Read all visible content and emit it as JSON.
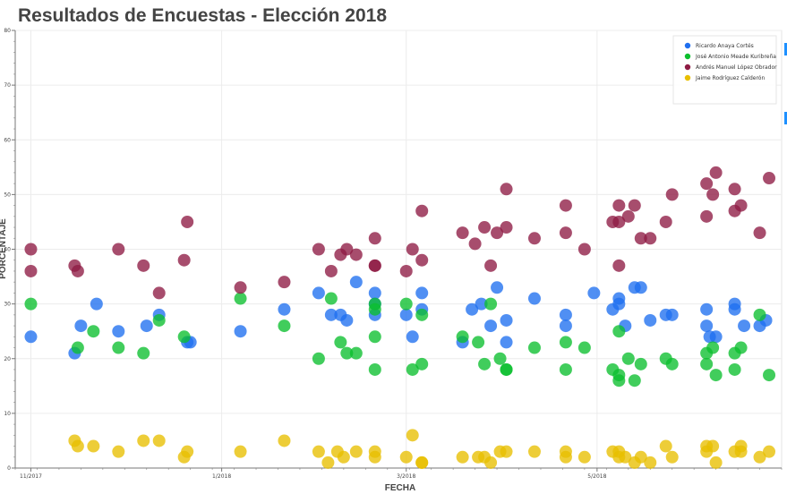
{
  "chart_data": {
    "type": "scatter",
    "title": "Resultados de Encuestas - Elección 2018",
    "xlabel": "FECHA",
    "ylabel": "PORCENTAJE",
    "ylim": [
      0,
      80
    ],
    "yticks": [
      0,
      10,
      20,
      30,
      40,
      50,
      60,
      70,
      80
    ],
    "xlim": [
      "2017-10-27",
      "2018-06-29"
    ],
    "xticks": [
      {
        "date": "2017-11-01",
        "label": "11/2017"
      },
      {
        "date": "2018-01-01",
        "label": "1/2018"
      },
      {
        "date": "2018-03-01",
        "label": "3/2018"
      },
      {
        "date": "2018-05-01",
        "label": "5/2018"
      }
    ],
    "grid": true,
    "legend_position": "top-right",
    "series": [
      {
        "name": "Ricardo Anaya Cortés",
        "color": "#1f6fef",
        "points": [
          [
            "2017-11-01",
            24
          ],
          [
            "2017-11-15",
            21
          ],
          [
            "2017-11-17",
            26
          ],
          [
            "2017-11-22",
            30
          ],
          [
            "2017-11-29",
            25
          ],
          [
            "2017-12-08",
            26
          ],
          [
            "2017-12-12",
            28
          ],
          [
            "2017-12-21",
            23
          ],
          [
            "2017-12-22",
            23
          ],
          [
            "2018-01-07",
            25
          ],
          [
            "2018-01-21",
            29
          ],
          [
            "2018-02-01",
            32
          ],
          [
            "2018-02-05",
            28
          ],
          [
            "2018-02-08",
            28
          ],
          [
            "2018-02-10",
            27
          ],
          [
            "2018-02-13",
            34
          ],
          [
            "2018-02-19",
            28
          ],
          [
            "2018-02-19",
            32
          ],
          [
            "2018-02-19",
            30
          ],
          [
            "2018-03-01",
            28
          ],
          [
            "2018-03-03",
            24
          ],
          [
            "2018-03-06",
            32
          ],
          [
            "2018-03-06",
            29
          ],
          [
            "2018-03-19",
            23
          ],
          [
            "2018-03-22",
            29
          ],
          [
            "2018-03-25",
            30
          ],
          [
            "2018-03-28",
            26
          ],
          [
            "2018-03-30",
            33
          ],
          [
            "2018-04-02",
            27
          ],
          [
            "2018-04-02",
            23
          ],
          [
            "2018-04-11",
            31
          ],
          [
            "2018-04-21",
            28
          ],
          [
            "2018-04-21",
            26
          ],
          [
            "2018-04-30",
            32
          ],
          [
            "2018-05-06",
            29
          ],
          [
            "2018-05-08",
            30
          ],
          [
            "2018-05-08",
            31
          ],
          [
            "2018-05-10",
            26
          ],
          [
            "2018-05-13",
            33
          ],
          [
            "2018-05-15",
            33
          ],
          [
            "2018-05-18",
            27
          ],
          [
            "2018-05-23",
            28
          ],
          [
            "2018-05-25",
            28
          ],
          [
            "2018-06-05",
            29
          ],
          [
            "2018-06-05",
            26
          ],
          [
            "2018-06-06",
            24
          ],
          [
            "2018-06-08",
            24
          ],
          [
            "2018-06-14",
            29
          ],
          [
            "2018-06-14",
            30
          ],
          [
            "2018-06-17",
            26
          ],
          [
            "2018-06-22",
            26
          ],
          [
            "2018-06-24",
            27
          ]
        ]
      },
      {
        "name": "José Antonio Meade Kuribreña",
        "color": "#0cbf2e",
        "points": [
          [
            "2017-11-01",
            30
          ],
          [
            "2017-11-16",
            22
          ],
          [
            "2017-11-21",
            25
          ],
          [
            "2017-11-29",
            22
          ],
          [
            "2017-12-07",
            21
          ],
          [
            "2017-12-12",
            27
          ],
          [
            "2017-12-20",
            24
          ],
          [
            "2018-01-07",
            31
          ],
          [
            "2018-01-21",
            26
          ],
          [
            "2018-02-01",
            20
          ],
          [
            "2018-02-05",
            31
          ],
          [
            "2018-02-08",
            23
          ],
          [
            "2018-02-10",
            21
          ],
          [
            "2018-02-13",
            21
          ],
          [
            "2018-02-19",
            24
          ],
          [
            "2018-02-19",
            30
          ],
          [
            "2018-02-19",
            29
          ],
          [
            "2018-02-19",
            18
          ],
          [
            "2018-03-01",
            30
          ],
          [
            "2018-03-03",
            18
          ],
          [
            "2018-03-06",
            28
          ],
          [
            "2018-03-06",
            19
          ],
          [
            "2018-03-19",
            24
          ],
          [
            "2018-03-24",
            23
          ],
          [
            "2018-03-26",
            19
          ],
          [
            "2018-03-28",
            30
          ],
          [
            "2018-03-31",
            20
          ],
          [
            "2018-04-02",
            18
          ],
          [
            "2018-04-02",
            18
          ],
          [
            "2018-04-11",
            22
          ],
          [
            "2018-04-21",
            23
          ],
          [
            "2018-04-21",
            18
          ],
          [
            "2018-04-27",
            22
          ],
          [
            "2018-05-06",
            18
          ],
          [
            "2018-05-08",
            17
          ],
          [
            "2018-05-08",
            25
          ],
          [
            "2018-05-08",
            16
          ],
          [
            "2018-05-11",
            20
          ],
          [
            "2018-05-13",
            16
          ],
          [
            "2018-05-15",
            19
          ],
          [
            "2018-05-23",
            20
          ],
          [
            "2018-05-25",
            19
          ],
          [
            "2018-06-05",
            19
          ],
          [
            "2018-06-05",
            21
          ],
          [
            "2018-06-07",
            22
          ],
          [
            "2018-06-08",
            17
          ],
          [
            "2018-06-14",
            21
          ],
          [
            "2018-06-14",
            18
          ],
          [
            "2018-06-16",
            22
          ],
          [
            "2018-06-22",
            28
          ],
          [
            "2018-06-25",
            17
          ]
        ]
      },
      {
        "name": "Andrés Manuel López Obrador",
        "color": "#8e1b44",
        "points": [
          [
            "2017-11-01",
            40
          ],
          [
            "2017-11-01",
            36
          ],
          [
            "2017-11-15",
            37
          ],
          [
            "2017-11-16",
            36
          ],
          [
            "2017-11-29",
            40
          ],
          [
            "2017-12-07",
            37
          ],
          [
            "2017-12-12",
            32
          ],
          [
            "2017-12-20",
            38
          ],
          [
            "2017-12-21",
            45
          ],
          [
            "2018-01-07",
            33
          ],
          [
            "2018-01-21",
            34
          ],
          [
            "2018-02-01",
            40
          ],
          [
            "2018-02-05",
            36
          ],
          [
            "2018-02-08",
            39
          ],
          [
            "2018-02-10",
            40
          ],
          [
            "2018-02-13",
            39
          ],
          [
            "2018-02-19",
            42
          ],
          [
            "2018-02-19",
            37
          ],
          [
            "2018-02-19",
            37
          ],
          [
            "2018-03-01",
            36
          ],
          [
            "2018-03-03",
            40
          ],
          [
            "2018-03-06",
            47
          ],
          [
            "2018-03-06",
            38
          ],
          [
            "2018-03-19",
            43
          ],
          [
            "2018-03-23",
            41
          ],
          [
            "2018-03-26",
            44
          ],
          [
            "2018-03-28",
            37
          ],
          [
            "2018-03-30",
            43
          ],
          [
            "2018-04-02",
            44
          ],
          [
            "2018-04-02",
            51
          ],
          [
            "2018-04-11",
            42
          ],
          [
            "2018-04-21",
            43
          ],
          [
            "2018-04-21",
            48
          ],
          [
            "2018-04-27",
            40
          ],
          [
            "2018-05-06",
            45
          ],
          [
            "2018-05-08",
            45
          ],
          [
            "2018-05-08",
            37
          ],
          [
            "2018-05-08",
            48
          ],
          [
            "2018-05-11",
            46
          ],
          [
            "2018-05-13",
            48
          ],
          [
            "2018-05-15",
            42
          ],
          [
            "2018-05-18",
            42
          ],
          [
            "2018-05-23",
            45
          ],
          [
            "2018-05-25",
            50
          ],
          [
            "2018-06-05",
            52
          ],
          [
            "2018-06-05",
            46
          ],
          [
            "2018-06-07",
            50
          ],
          [
            "2018-06-08",
            54
          ],
          [
            "2018-06-14",
            51
          ],
          [
            "2018-06-14",
            47
          ],
          [
            "2018-06-16",
            48
          ],
          [
            "2018-06-22",
            43
          ],
          [
            "2018-06-25",
            53
          ]
        ]
      },
      {
        "name": "Jaime Rodríguez Calderón",
        "color": "#e8bf00",
        "points": [
          [
            "2017-11-15",
            5
          ],
          [
            "2017-11-16",
            4
          ],
          [
            "2017-11-21",
            4
          ],
          [
            "2017-11-29",
            3
          ],
          [
            "2017-12-07",
            5
          ],
          [
            "2017-12-12",
            5
          ],
          [
            "2017-12-20",
            2
          ],
          [
            "2017-12-21",
            3
          ],
          [
            "2018-01-07",
            3
          ],
          [
            "2018-01-21",
            5
          ],
          [
            "2018-02-01",
            3
          ],
          [
            "2018-02-04",
            1
          ],
          [
            "2018-02-07",
            3
          ],
          [
            "2018-02-09",
            2
          ],
          [
            "2018-02-13",
            3
          ],
          [
            "2018-02-19",
            2
          ],
          [
            "2018-02-19",
            3
          ],
          [
            "2018-03-01",
            2
          ],
          [
            "2018-03-03",
            6
          ],
          [
            "2018-03-06",
            1
          ],
          [
            "2018-03-06",
            1
          ],
          [
            "2018-03-19",
            2
          ],
          [
            "2018-03-24",
            2
          ],
          [
            "2018-03-26",
            2
          ],
          [
            "2018-03-28",
            1
          ],
          [
            "2018-03-31",
            3
          ],
          [
            "2018-04-02",
            3
          ],
          [
            "2018-04-11",
            3
          ],
          [
            "2018-04-21",
            2
          ],
          [
            "2018-04-21",
            3
          ],
          [
            "2018-04-27",
            2
          ],
          [
            "2018-05-06",
            3
          ],
          [
            "2018-05-08",
            2
          ],
          [
            "2018-05-08",
            3
          ],
          [
            "2018-05-10",
            2
          ],
          [
            "2018-05-13",
            1
          ],
          [
            "2018-05-15",
            2
          ],
          [
            "2018-05-18",
            1
          ],
          [
            "2018-05-23",
            4
          ],
          [
            "2018-05-25",
            2
          ],
          [
            "2018-06-05",
            3
          ],
          [
            "2018-06-05",
            4
          ],
          [
            "2018-06-07",
            4
          ],
          [
            "2018-06-08",
            1
          ],
          [
            "2018-06-14",
            3
          ],
          [
            "2018-06-16",
            4
          ],
          [
            "2018-06-16",
            3
          ],
          [
            "2018-06-22",
            2
          ],
          [
            "2018-06-25",
            3
          ]
        ]
      }
    ]
  }
}
